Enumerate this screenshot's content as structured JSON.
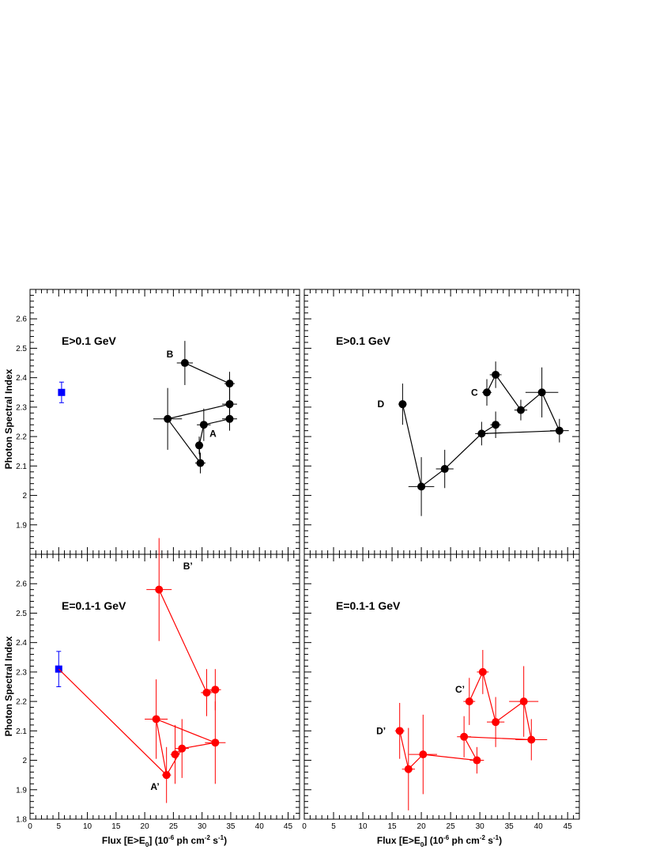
{
  "figure": {
    "ylabel": "Photon Spectral Index",
    "xlabel_left": "Flux [E>E",
    "xlabel_sub": "0",
    "xlabel_mid": "] (10",
    "xlabel_sup1": "-6",
    "xlabel_mid2": " ph cm",
    "xlabel_sup2": "-2",
    "xlabel_mid3": " s",
    "xlabel_sup3": "-1",
    "xlabel_end": ")"
  },
  "chart_data": [
    {
      "type": "scatter",
      "panel": "top-left",
      "title": "E>0.1 GeV",
      "xlim": [
        0,
        47
      ],
      "ylim": [
        1.8,
        2.7
      ],
      "annotations": [
        {
          "text": "B",
          "x": 23.8,
          "y": 2.48
        },
        {
          "text": "A",
          "x": 31.3,
          "y": 2.21
        }
      ],
      "series": [
        {
          "color": "#0000ff",
          "marker": "square",
          "connected": false,
          "points": [
            {
              "x": 5.5,
              "y": 2.35,
              "xerr": 0,
              "yerr": 0.035
            }
          ]
        },
        {
          "color": "#000000",
          "marker": "circle",
          "connected": true,
          "points": [
            {
              "x": 34.8,
              "y": 2.31,
              "xerr": 1.3,
              "yerr": 0.045
            },
            {
              "x": 24.0,
              "y": 2.26,
              "xerr": 2.5,
              "yerr": 0.105
            },
            {
              "x": 29.7,
              "y": 2.11,
              "xerr": 0.9,
              "yerr": 0.035
            },
            {
              "x": 29.5,
              "y": 2.17,
              "xerr": 0.7,
              "yerr": 0.03
            },
            {
              "x": 30.3,
              "y": 2.24,
              "xerr": 1.2,
              "yerr": 0.055
            },
            {
              "x": 34.8,
              "y": 2.26,
              "xerr": 1.3,
              "yerr": 0.04
            },
            {
              "x": 34.8,
              "y": 2.38,
              "xerr": 0.9,
              "yerr": 0.04
            },
            {
              "x": 27.0,
              "y": 2.45,
              "xerr": 1.4,
              "yerr": 0.075
            }
          ]
        }
      ]
    },
    {
      "type": "scatter",
      "panel": "top-right",
      "title": "E>0.1 GeV",
      "xlim": [
        0,
        47
      ],
      "ylim": [
        1.8,
        2.7
      ],
      "annotations": [
        {
          "text": "D",
          "x": 12.5,
          "y": 2.31
        },
        {
          "text": "C",
          "x": 28.5,
          "y": 2.35
        }
      ],
      "series": [
        {
          "color": "#000000",
          "marker": "circle",
          "connected": true,
          "points": [
            {
              "x": 16.8,
              "y": 2.31,
              "xerr": 0.7,
              "yerr": 0.07
            },
            {
              "x": 20.0,
              "y": 2.03,
              "xerr": 2.2,
              "yerr": 0.1
            },
            {
              "x": 24.0,
              "y": 2.09,
              "xerr": 1.5,
              "yerr": 0.065
            },
            {
              "x": 30.3,
              "y": 2.21,
              "xerr": 1.1,
              "yerr": 0.04
            },
            {
              "x": 32.7,
              "y": 2.24,
              "xerr": 0.9,
              "yerr": 0.045
            },
            {
              "x": 30.3,
              "y": 2.21,
              "xerr": 0,
              "yerr": 0
            },
            {
              "x": 43.6,
              "y": 2.22,
              "xerr": 1.6,
              "yerr": 0.04
            },
            {
              "x": 40.6,
              "y": 2.35,
              "xerr": 2.8,
              "yerr": 0.085
            },
            {
              "x": 37.0,
              "y": 2.29,
              "xerr": 1.1,
              "yerr": 0.035
            },
            {
              "x": 32.7,
              "y": 2.41,
              "xerr": 1.0,
              "yerr": 0.045
            },
            {
              "x": 31.2,
              "y": 2.35,
              "xerr": 0.8,
              "yerr": 0.045
            }
          ]
        }
      ]
    },
    {
      "type": "scatter",
      "panel": "bottom-left",
      "title": "E=0.1-1 GeV",
      "xlim": [
        0,
        47
      ],
      "ylim": [
        1.8,
        2.7
      ],
      "annotations": [
        {
          "text": "B’",
          "x": 26.7,
          "y": 2.66
        },
        {
          "text": "A’",
          "x": 21.0,
          "y": 1.91
        }
      ],
      "series": [
        {
          "color": "#0000ff",
          "marker": "square",
          "connected": false,
          "points": [
            {
              "x": 5.0,
              "y": 2.31,
              "xerr": 0,
              "yerr": 0.06
            }
          ]
        },
        {
          "color": "#ff0000",
          "marker": "circle",
          "connected": true,
          "points": [
            {
              "x": 5.0,
              "y": 2.31,
              "xerr": 0,
              "yerr": 0
            },
            {
              "x": 23.8,
              "y": 1.95,
              "xerr": 0.8,
              "yerr": 0.095
            },
            {
              "x": 22.0,
              "y": 2.14,
              "xerr": 2.0,
              "yerr": 0.135
            },
            {
              "x": 32.3,
              "y": 2.06,
              "xerr": 1.8,
              "yerr": 0.14
            },
            {
              "x": 26.5,
              "y": 2.04,
              "xerr": 1.2,
              "yerr": 0.1
            },
            {
              "x": 25.3,
              "y": 2.02,
              "xerr": 0.8,
              "yerr": 0.1
            },
            {
              "x": 26.5,
              "y": 2.04,
              "xerr": 0,
              "yerr": 0
            },
            {
              "x": 23.8,
              "y": 1.95,
              "xerr": 0,
              "yerr": 0
            }
          ]
        },
        {
          "color": "#ff0000",
          "marker": "circle",
          "connected": true,
          "points": [
            {
              "x": 22.5,
              "y": 2.58,
              "xerr": 2.2,
              "yerr": 0.175
            },
            {
              "x": 30.8,
              "y": 2.23,
              "xerr": 1.0,
              "yerr": 0.08
            },
            {
              "x": 32.3,
              "y": 2.24,
              "xerr": 1.0,
              "yerr": 0.07
            }
          ]
        }
      ]
    },
    {
      "type": "scatter",
      "panel": "bottom-right",
      "title": "E=0.1-1 GeV",
      "xlim": [
        0,
        47
      ],
      "ylim": [
        1.8,
        2.7
      ],
      "annotations": [
        {
          "text": "D’",
          "x": 12.3,
          "y": 2.1
        },
        {
          "text": "C’",
          "x": 25.8,
          "y": 2.24
        }
      ],
      "series": [
        {
          "color": "#ff0000",
          "marker": "circle",
          "connected": true,
          "points": [
            {
              "x": 16.3,
              "y": 2.1,
              "xerr": 0.8,
              "yerr": 0.095
            },
            {
              "x": 17.8,
              "y": 1.97,
              "xerr": 1.1,
              "yerr": 0.14
            },
            {
              "x": 20.3,
              "y": 2.02,
              "xerr": 2.4,
              "yerr": 0.135
            },
            {
              "x": 29.5,
              "y": 2.0,
              "xerr": 1.2,
              "yerr": 0.045
            },
            {
              "x": 27.3,
              "y": 2.08,
              "xerr": 1.2,
              "yerr": 0.07
            },
            {
              "x": 38.8,
              "y": 2.07,
              "xerr": 2.7,
              "yerr": 0.07
            },
            {
              "x": 37.5,
              "y": 2.2,
              "xerr": 2.5,
              "yerr": 0.12
            },
            {
              "x": 32.7,
              "y": 2.13,
              "xerr": 1.5,
              "yerr": 0.085
            },
            {
              "x": 30.5,
              "y": 2.3,
              "xerr": 1.0,
              "yerr": 0.075
            },
            {
              "x": 28.2,
              "y": 2.2,
              "xerr": 1.0,
              "yerr": 0.08
            }
          ]
        }
      ]
    }
  ]
}
